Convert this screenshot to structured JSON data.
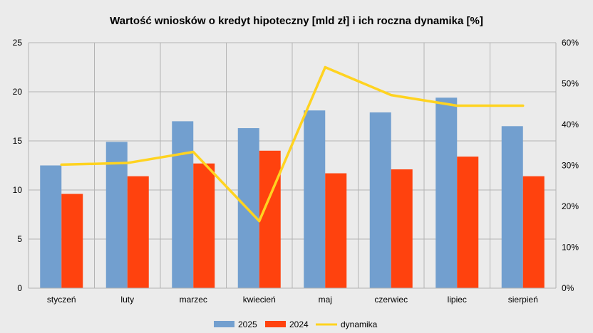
{
  "chart_data": {
    "type": "bar",
    "title": "Wartość wniosków o kredyt hipoteczny [mld zł] i ich roczna dynamika [%]",
    "categories": [
      "styczeń",
      "luty",
      "marzec",
      "kwiecień",
      "maj",
      "czerwiec",
      "lipiec",
      "sierpień"
    ],
    "series": [
      {
        "name": "2025",
        "type": "bar",
        "axis": "left",
        "color": "#729fcf",
        "values": [
          12.5,
          14.9,
          17.0,
          16.3,
          18.1,
          17.9,
          19.4,
          16.5
        ]
      },
      {
        "name": "2024",
        "type": "bar",
        "axis": "left",
        "color": "#ff420e",
        "values": [
          9.6,
          11.4,
          12.7,
          14.0,
          11.7,
          12.1,
          13.4,
          11.4
        ]
      }
    ],
    "line_series": {
      "name": "dynamika",
      "type": "line",
      "axis": "right",
      "color": "#ffd320",
      "values": [
        30.2,
        30.6,
        33.3,
        16.4,
        54.0,
        47.2,
        44.6,
        44.6
      ]
    },
    "y_left": {
      "min": 0,
      "max": 25,
      "ticks": [
        "0",
        "5",
        "10",
        "15",
        "20",
        "25"
      ]
    },
    "y_right": {
      "min": 0,
      "max": 60,
      "ticks": [
        "0%",
        "10%",
        "20%",
        "30%",
        "40%",
        "50%",
        "60%"
      ]
    },
    "grid": true,
    "legend": {
      "placement": "bottom",
      "items": [
        "2025",
        "2024",
        "dynamika"
      ]
    }
  }
}
